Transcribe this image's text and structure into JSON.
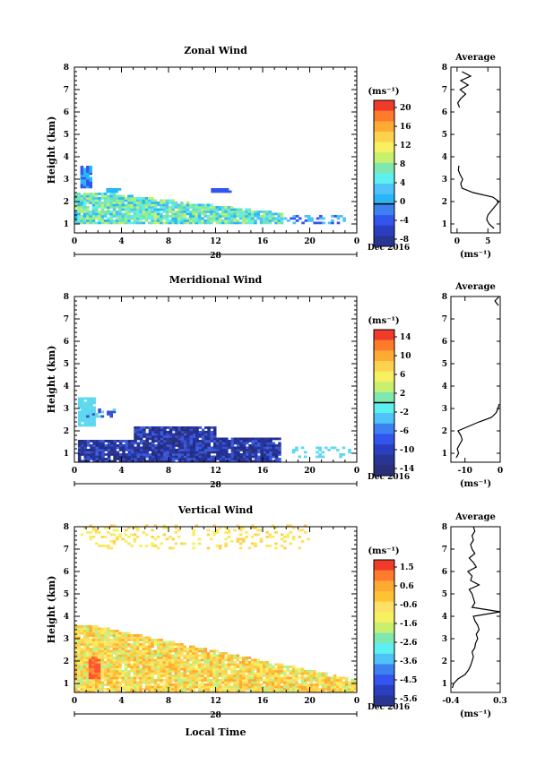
{
  "chart_data": [
    {
      "type": "heatmap",
      "title": "Zonal Wind",
      "xlabel": "",
      "ylabel": "Height (km)",
      "xlim": [
        0,
        24
      ],
      "ylim": [
        0.6,
        8
      ],
      "x_ticks": [
        "0",
        "4",
        "8",
        "12",
        "16",
        "20",
        "0"
      ],
      "y_ticks": [
        "1",
        "2",
        "3",
        "4",
        "5",
        "6",
        "7",
        "8"
      ],
      "date_row": {
        "day": "28",
        "month": "Dec 2016"
      },
      "colorbar": {
        "unit": "(ms⁻¹)",
        "ticks": [
          "20",
          "16",
          "12",
          "8",
          "4",
          "0",
          "-4",
          "-8"
        ],
        "range": [
          -9,
          22
        ],
        "zero_line": 0
      },
      "scatter_colors": [
        "#5cf0f0",
        "#66e0c4",
        "#7ee8b0",
        "#9cf080",
        "#4fc3f7",
        "#29b6f6",
        "#c8f070",
        "#3355ee"
      ],
      "average_profile": {
        "title": "Average",
        "xlabel": "(ms⁻¹)",
        "x_ticks": [
          "0",
          "5"
        ],
        "xlim": [
          -1,
          7
        ],
        "heights": [
          0.8,
          1.0,
          1.2,
          1.4,
          1.6,
          1.8,
          2.0,
          2.2,
          2.4,
          2.6,
          2.8,
          3.0,
          3.2,
          3.4,
          3.6
        ],
        "values": [
          6.0,
          5.2,
          4.8,
          5.0,
          5.6,
          6.2,
          6.8,
          5.8,
          2.6,
          0.8,
          0.6,
          0.9,
          0.5,
          0.2,
          0.3
        ],
        "upper_heights": [
          6.2,
          6.4,
          6.6,
          6.8,
          7.0,
          7.2,
          7.4,
          7.6,
          7.8
        ],
        "upper_values": [
          0.4,
          0.1,
          0.6,
          1.4,
          0.5,
          1.8,
          0.6,
          2.2,
          0.8
        ]
      }
    },
    {
      "type": "heatmap",
      "title": "Meridional Wind",
      "xlabel": "",
      "ylabel": "Height (km)",
      "xlim": [
        0,
        24
      ],
      "ylim": [
        0.6,
        8
      ],
      "x_ticks": [
        "0",
        "4",
        "8",
        "12",
        "16",
        "20",
        "0"
      ],
      "y_ticks": [
        "1",
        "2",
        "3",
        "4",
        "5",
        "6",
        "7",
        "8"
      ],
      "date_row": {
        "day": "28",
        "month": "Dec 2016"
      },
      "colorbar": {
        "unit": "(ms⁻¹)",
        "ticks": [
          "14",
          "10",
          "6",
          "2",
          "-2",
          "-6",
          "-10",
          "-14"
        ],
        "range": [
          -16,
          16
        ],
        "zero_line": 0
      },
      "scatter_colors": [
        "#2b3a9a",
        "#2433a8",
        "#1f2d86",
        "#3a4fd0",
        "#2a2f7a",
        "#5fd8f0",
        "#3b5fe0"
      ],
      "average_profile": {
        "title": "Average",
        "xlabel": "(ms⁻¹)",
        "x_ticks": [
          "-10",
          "0"
        ],
        "xlim": [
          -14,
          0
        ],
        "heights": [
          0.8,
          1.0,
          1.2,
          1.4,
          1.6,
          1.8,
          2.0,
          2.2,
          2.4,
          2.6,
          2.8,
          3.0,
          3.2
        ],
        "values": [
          -12.5,
          -11.8,
          -12.2,
          -11.5,
          -10.8,
          -11.2,
          -12.0,
          -9.0,
          -6.0,
          -2.5,
          -1.2,
          -0.6,
          -0.3
        ],
        "upper_heights": [
          7.6,
          7.8,
          8.0
        ],
        "upper_values": [
          -0.5,
          -1.5,
          -0.3
        ]
      }
    },
    {
      "type": "heatmap",
      "title": "Vertical Wind",
      "xlabel": "Local Time",
      "ylabel": "Height (km)",
      "xlim": [
        0,
        24
      ],
      "ylim": [
        0.6,
        8
      ],
      "x_ticks": [
        "0",
        "4",
        "8",
        "12",
        "16",
        "20",
        "0"
      ],
      "y_ticks": [
        "1",
        "2",
        "3",
        "4",
        "5",
        "6",
        "7",
        "8"
      ],
      "date_row": {
        "day": "28",
        "month": "Dec 2016"
      },
      "colorbar": {
        "unit": "(ms⁻¹)",
        "ticks": [
          "1.5",
          "0.6",
          "-0.6",
          "-1.6",
          "-2.6",
          "-3.6",
          "-4.5",
          "-5.6"
        ],
        "range": [
          -6,
          2
        ],
        "zero_line": null
      },
      "scatter_colors": [
        "#ffd24d",
        "#ffc233",
        "#ffe066",
        "#ffaa33",
        "#f7f060",
        "#b8f08a",
        "#ff8a2a",
        "#ff5533"
      ],
      "average_profile": {
        "title": "Average",
        "xlabel": "(ms⁻¹)",
        "x_ticks": [
          "-0.4",
          "0.3"
        ],
        "xlim": [
          -0.4,
          0.3
        ],
        "heights": [
          0.8,
          1.0,
          1.2,
          1.4,
          1.6,
          1.8,
          2.0,
          2.2,
          2.4,
          2.6,
          2.8,
          3.0,
          3.2,
          3.4,
          3.6,
          3.8,
          4.0,
          4.2,
          4.4,
          4.6,
          4.8,
          5.0,
          5.2,
          5.4,
          5.6,
          5.8,
          6.0,
          6.2,
          6.4,
          6.6,
          6.8,
          7.0,
          7.2,
          7.4,
          7.6,
          7.8,
          8.0
        ],
        "values": [
          -0.38,
          -0.36,
          -0.3,
          -0.2,
          -0.15,
          -0.12,
          -0.1,
          -0.08,
          -0.1,
          -0.06,
          -0.05,
          -0.02,
          -0.04,
          0.0,
          -0.02,
          -0.06,
          -0.08,
          0.3,
          -0.1,
          -0.06,
          -0.08,
          -0.1,
          -0.14,
          0.0,
          -0.12,
          -0.1,
          -0.16,
          -0.04,
          -0.08,
          -0.14,
          -0.06,
          -0.1,
          -0.12,
          -0.08,
          -0.1,
          -0.06,
          -0.08
        ]
      }
    }
  ]
}
